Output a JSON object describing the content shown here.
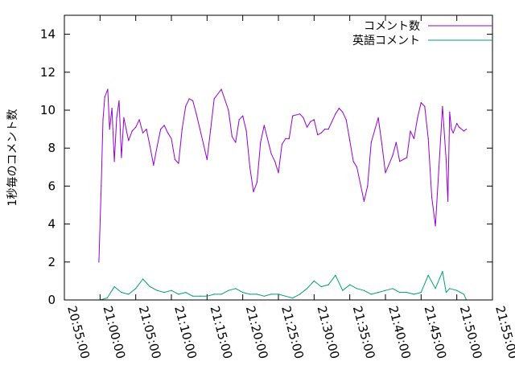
{
  "chart_data": {
    "type": "line",
    "ylabel": "1秒毎のコメント数",
    "ylim": [
      0,
      15
    ],
    "yticks": [
      "0",
      "2",
      "4",
      "6",
      "8",
      "10",
      "12",
      "14"
    ],
    "xlim": [
      "20:55:00",
      "21:55:00"
    ],
    "xticks": [
      "20:55:00",
      "21:00:00",
      "21:05:00",
      "21:10:00",
      "21:15:00",
      "21:20:00",
      "21:25:00",
      "21:30:00",
      "21:35:00",
      "21:40:00",
      "21:45:00",
      "21:50:00",
      "21:55:00"
    ],
    "legend_position": "top-right",
    "series": [
      {
        "name": "コメント数",
        "color": "#9400d3",
        "x": [
          "20:59:50",
          "21:00:10",
          "21:00:25",
          "21:00:40",
          "21:01:05",
          "21:01:20",
          "21:01:40",
          "21:02:00",
          "21:02:20",
          "21:02:40",
          "21:03:00",
          "21:03:20",
          "21:03:40",
          "21:04:00",
          "21:04:30",
          "21:05:00",
          "21:05:30",
          "21:06:00",
          "21:06:30",
          "21:07:00",
          "21:07:30",
          "21:08:00",
          "21:08:30",
          "21:09:00",
          "21:09:30",
          "21:10:00",
          "21:10:30",
          "21:11:00",
          "21:11:30",
          "21:12:00",
          "21:12:30",
          "21:13:00",
          "21:13:30",
          "21:14:00",
          "21:14:30",
          "21:15:00",
          "21:15:30",
          "21:16:00",
          "21:17:00",
          "21:18:00",
          "21:18:30",
          "21:19:00",
          "21:19:30",
          "21:20:00",
          "21:20:30",
          "21:21:00",
          "21:21:30",
          "21:22:00",
          "21:22:30",
          "21:23:00",
          "21:24:00",
          "21:24:30",
          "21:25:00",
          "21:25:30",
          "21:26:00",
          "21:26:30",
          "21:27:00",
          "21:28:00",
          "21:28:30",
          "21:29:00",
          "21:29:30",
          "21:30:00",
          "21:30:30",
          "21:31:00",
          "21:31:30",
          "21:32:00",
          "21:32:30",
          "21:33:00",
          "21:33:30",
          "21:34:00",
          "21:34:30",
          "21:35:00",
          "21:35:30",
          "21:36:00",
          "21:37:00",
          "21:37:30",
          "21:38:00",
          "21:39:00",
          "21:39:30",
          "21:40:00",
          "21:41:00",
          "21:41:30",
          "21:42:00",
          "21:43:00",
          "21:43:30",
          "21:44:00",
          "21:44:30",
          "21:45:00",
          "21:45:30",
          "21:46:00",
          "21:46:30",
          "21:47:00",
          "21:47:30",
          "21:48:00",
          "21:48:30",
          "21:48:45",
          "21:49:00",
          "21:49:15",
          "21:49:30",
          "21:50:00",
          "21:50:20",
          "21:51:00",
          "21:51:20"
        ],
        "y": [
          2.0,
          6.0,
          9.5,
          10.7,
          11.1,
          9.0,
          10.1,
          7.3,
          9.6,
          10.5,
          7.5,
          9.6,
          9.0,
          8.4,
          8.9,
          9.1,
          9.5,
          8.8,
          9.0,
          8.1,
          7.1,
          8.1,
          9.0,
          9.2,
          8.8,
          8.5,
          7.4,
          7.2,
          9.0,
          10.2,
          10.6,
          10.5,
          9.8,
          9.0,
          8.2,
          7.4,
          9.0,
          10.6,
          11.1,
          10.0,
          8.6,
          8.3,
          9.5,
          9.7,
          8.9,
          7.0,
          5.7,
          6.2,
          8.3,
          9.2,
          7.7,
          7.3,
          6.7,
          8.2,
          8.5,
          8.5,
          9.7,
          9.8,
          9.6,
          9.1,
          9.4,
          9.5,
          8.7,
          8.8,
          9.0,
          9.0,
          9.4,
          9.8,
          10.1,
          9.9,
          9.5,
          8.4,
          7.3,
          7.0,
          5.2,
          6.0,
          8.3,
          9.6,
          8.2,
          6.7,
          7.6,
          8.3,
          7.3,
          7.5,
          8.9,
          8.5,
          9.6,
          10.4,
          10.2,
          8.5,
          5.4,
          3.9,
          7.0,
          10.2,
          7.4,
          5.2,
          9.9,
          9.0,
          8.8,
          9.3,
          9.1,
          8.9,
          9.0
        ]
      },
      {
        "name": "英語コメント",
        "color": "#009e73",
        "x": [
          "21:00:00",
          "21:01:00",
          "21:02:00",
          "21:03:00",
          "21:04:00",
          "21:05:00",
          "21:06:00",
          "21:07:00",
          "21:08:00",
          "21:09:00",
          "21:10:00",
          "21:11:00",
          "21:12:00",
          "21:13:00",
          "21:14:00",
          "21:15:00",
          "21:16:00",
          "21:17:00",
          "21:18:00",
          "21:19:00",
          "21:20:00",
          "21:21:00",
          "21:22:00",
          "21:23:00",
          "21:24:00",
          "21:25:00",
          "21:26:00",
          "21:27:00",
          "21:28:00",
          "21:29:00",
          "21:30:00",
          "21:31:00",
          "21:32:00",
          "21:33:00",
          "21:34:00",
          "21:35:00",
          "21:36:00",
          "21:37:00",
          "21:38:00",
          "21:39:00",
          "21:40:00",
          "21:41:00",
          "21:42:00",
          "21:43:00",
          "21:44:00",
          "21:45:00",
          "21:46:00",
          "21:47:00",
          "21:48:00",
          "21:48:30",
          "21:49:00",
          "21:50:00",
          "21:51:00",
          "21:51:20"
        ],
        "y": [
          0.0,
          0.1,
          0.7,
          0.4,
          0.3,
          0.6,
          1.1,
          0.7,
          0.5,
          0.4,
          0.5,
          0.3,
          0.4,
          0.2,
          0.2,
          0.2,
          0.3,
          0.3,
          0.5,
          0.6,
          0.4,
          0.3,
          0.3,
          0.2,
          0.3,
          0.3,
          0.2,
          0.1,
          0.3,
          0.6,
          1.0,
          0.7,
          0.8,
          1.3,
          0.5,
          0.8,
          0.6,
          0.5,
          0.3,
          0.4,
          0.5,
          0.6,
          0.4,
          0.4,
          0.3,
          0.4,
          1.3,
          0.6,
          1.5,
          0.4,
          0.6,
          0.5,
          0.3,
          0.0
        ]
      }
    ]
  }
}
